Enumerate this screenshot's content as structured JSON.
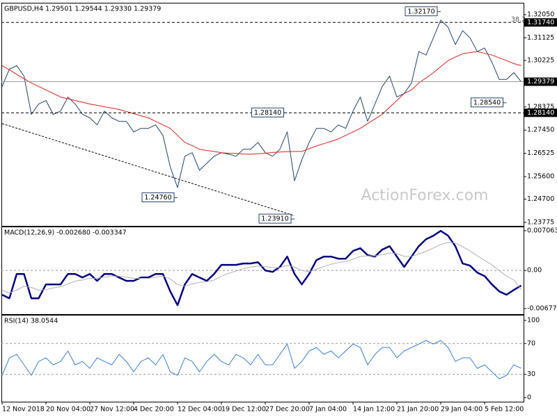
{
  "chart_data": [
    {
      "type": "price",
      "title": "GBPUSD,H4 1.29501 1.29544 1.29330 1.29379",
      "series": [
        {
          "color": "#24436b",
          "values": [
            1.2919,
            1.2988,
            1.3002,
            1.296,
            1.2808,
            1.2849,
            1.2863,
            1.2808,
            1.2821,
            1.2877,
            1.2849,
            1.2808,
            1.2794,
            1.2766,
            1.2821,
            1.2794,
            1.278,
            1.278,
            1.2738,
            1.2752,
            1.2752,
            1.2766,
            1.2724,
            1.2599,
            1.2516,
            1.2641,
            1.2655,
            1.2585,
            1.2613,
            1.2641,
            1.2655,
            1.2649,
            1.2641,
            1.2669,
            1.2669,
            1.2696,
            1.2655,
            1.2641,
            1.2669,
            1.2738,
            1.2543,
            1.2627,
            1.2696,
            1.2752,
            1.2752,
            1.2738,
            1.2766,
            1.2752,
            1.2821,
            1.2877,
            1.278,
            1.2849,
            1.2919,
            1.296,
            1.2877,
            1.2891,
            1.2933,
            1.3058,
            1.3044,
            1.3113,
            1.3183,
            1.3155,
            1.3086,
            1.3141,
            1.3113,
            1.3058,
            1.3072,
            1.3016,
            1.2947,
            1.2947,
            1.2974,
            1.29379
          ]
        },
        {
          "color": "#e0201b",
          "values": [
            1.3002,
            1.2985,
            1.2967,
            1.295,
            1.2933,
            1.2919,
            1.2905,
            1.2891,
            1.2877,
            1.287,
            1.2863,
            1.2856,
            1.2849,
            1.2844,
            1.2838,
            1.2833,
            1.2827,
            1.2819,
            1.2811,
            1.2802,
            1.2794,
            1.278,
            1.2766,
            1.2752,
            1.2724,
            1.2696,
            1.2683,
            1.2669,
            1.2664,
            1.266,
            1.2655,
            1.2653,
            1.2652,
            1.265,
            1.2649,
            1.2651,
            1.2653,
            1.2656,
            1.2658,
            1.2659,
            1.266,
            1.266,
            1.2671,
            1.2682,
            1.2691,
            1.27,
            1.271,
            1.2724,
            1.2738,
            1.2752,
            1.2771,
            1.2789,
            1.2808,
            1.2836,
            1.2863,
            1.2891,
            1.2905,
            1.2933,
            1.2953,
            1.2974,
            1.2998,
            1.3022,
            1.3036,
            1.3049,
            1.3054,
            1.3058,
            1.3051,
            1.3044,
            1.3033,
            1.3022,
            1.301,
            1.3002
          ]
        }
      ],
      "ylim": [
        1.23636,
        1.32523
      ],
      "yticks": [
        {
          "value": 1.3205,
          "label": "1.32050"
        },
        {
          "value": 1.31125,
          "label": "1.31125"
        },
        {
          "value": 1.30225,
          "label": "1.30225"
        },
        {
          "value": 1.28375,
          "label": "1.28375"
        },
        {
          "value": 1.2745,
          "label": "1.27450"
        },
        {
          "value": 1.26525,
          "label": "1.26525"
        },
        {
          "value": 1.256,
          "label": "1.25600"
        },
        {
          "value": 1.247,
          "label": "1.24700"
        },
        {
          "value": 1.23775,
          "label": "1.23775"
        }
      ],
      "levels": [
        {
          "value": 1.3174,
          "label": "1.31740",
          "note": "38.2",
          "dash": true
        },
        {
          "value": 1.2814,
          "label": "1.28140",
          "dash": true
        },
        {
          "value": 1.29379,
          "label": "1.29379",
          "dash": false
        }
      ],
      "annotations": [
        {
          "x": 60,
          "value": 1.3217,
          "label": "1.32170"
        },
        {
          "x": 69,
          "value": 1.2854,
          "label": "1.28540"
        },
        {
          "x": 39,
          "value": 1.2814,
          "label": "1.28140"
        },
        {
          "x": 24,
          "value": 1.2476,
          "label": "1.24760"
        },
        {
          "x": 40,
          "value": 1.2391,
          "label": "1.23910"
        }
      ],
      "trendline": {
        "x": [
          0,
          40
        ],
        "values": [
          1.2771,
          1.2404
        ]
      },
      "watermark": "ActionForex.com"
    },
    {
      "type": "macd",
      "title": "MACD(12,26,9) -0.002680 -0.003347",
      "series": [
        {
          "color": "#000080",
          "values": [
            -0.00432,
            -0.00494,
            -0.00062,
            -0.00062,
            -0.00494,
            -0.00494,
            -0.00247,
            -0.00247,
            -0.00247,
            -0.00062,
            -0.00062,
            -0.00124,
            -0.00062,
            -0.00185,
            -0.00062,
            -0.00062,
            -0.00124,
            -0.00185,
            -0.00185,
            -0.00124,
            -0.00124,
            -0.00062,
            -0.00062,
            -0.00371,
            -0.00618,
            -0.00247,
            -0.00062,
            -0.00124,
            -0.00185,
            -0.00062,
            0.00099,
            0.00099,
            0.00099,
            0.00124,
            0.00124,
            0.00148,
            0,
            -0.00025,
            0.00062,
            0.00247,
            -0.00062,
            -0.00247,
            -0.00062,
            0.00185,
            0.00247,
            0.00247,
            0.0021,
            0.0021,
            0.00346,
            0.00395,
            0.00272,
            0.00247,
            0.00371,
            0.00432,
            0.00247,
            0.00062,
            0.00247,
            0.00432,
            0.00556,
            0.00618,
            0.00704,
            0.00618,
            0.00432,
            0.00124,
            0.00086,
            -0.00037,
            -0.00099,
            -0.00247,
            -0.00371,
            -0.00432,
            -0.00346,
            -0.00268
          ]
        },
        {
          "color": "#b0b0b0",
          "values": [
            -0.0035,
            -0.004,
            -0.0035,
            -0.0028,
            -0.003,
            -0.0035,
            -0.0034,
            -0.0031,
            -0.0029,
            -0.0024,
            -0.0019,
            -0.0017,
            -0.0014,
            -0.0014,
            -0.0012,
            -0.001,
            -0.001,
            -0.0012,
            -0.0014,
            -0.0014,
            -0.0014,
            -0.0012,
            -0.001,
            -0.0015,
            -0.0025,
            -0.0028,
            -0.0024,
            -0.0021,
            -0.002,
            -0.0017,
            -0.001,
            -0.0005,
            -0.0001,
            0.0003,
            0.0006,
            0.0008,
            0.0007,
            0.0005,
            0.0005,
            0.0009,
            0.0006,
            0,
            -0.0002,
            0.0002,
            0.0007,
            0.0011,
            0.0014,
            0.0016,
            0.002,
            0.0025,
            0.0026,
            0.0026,
            0.0028,
            0.0031,
            0.003,
            0.0025,
            0.0025,
            0.0029,
            0.0034,
            0.004,
            0.0046,
            0.005,
            0.0049,
            0.0042,
            0.0035,
            0.0026,
            0.0018,
            0.001,
            0,
            -0.001,
            -0.0017,
            -0.003347
          ]
        }
      ],
      "ylim": [
        -0.00776,
        0.0078
      ],
      "yticks": [
        0.007063,
        {
          "value": 0,
          "label": "0.00"
        },
        -0.006774
      ],
      "levels": [
        0
      ]
    },
    {
      "type": "rsi",
      "title": "RSI(14) 38.0544",
      "series": [
        {
          "color": "#3a7fd5",
          "values": [
            28.8,
            51.4,
            55.9,
            42.3,
            28.8,
            46.8,
            51.4,
            42.3,
            46.8,
            60.4,
            42.3,
            46.8,
            37.8,
            51.4,
            46.8,
            42.3,
            55.9,
            46.8,
            33.3,
            46.8,
            51.4,
            42.3,
            55.9,
            33.3,
            28.8,
            51.4,
            46.8,
            33.3,
            46.8,
            55.9,
            46.8,
            42.3,
            55.9,
            51.4,
            42.3,
            55.9,
            42.3,
            42.3,
            55.9,
            69.4,
            37.8,
            46.8,
            60.4,
            64.9,
            55.9,
            60.4,
            51.4,
            60.4,
            69.4,
            64.9,
            42.3,
            55.9,
            64.9,
            64.9,
            51.4,
            60.4,
            64.9,
            69.4,
            73.9,
            69.4,
            73.9,
            64.9,
            46.8,
            51.4,
            51.4,
            37.8,
            42.3,
            33.3,
            24.3,
            28.8,
            42.3,
            38.0544
          ]
        }
      ],
      "ylim": [
        -5.4,
        107.2
      ],
      "yticks": [
        100,
        70,
        30,
        0
      ],
      "levels": [
        70,
        30
      ],
      "categories": [
        "12 Nov 2018",
        null,
        null,
        null,
        null,
        null,
        "20 Nov 04:00",
        null,
        null,
        null,
        null,
        null,
        "27 Nov 12:00",
        null,
        null,
        null,
        null,
        null,
        "4 Dec 20:00",
        null,
        null,
        null,
        null,
        null,
        "12 Dec 04:00",
        null,
        null,
        null,
        null,
        null,
        "19 Dec 12:00",
        null,
        null,
        null,
        null,
        null,
        "27 Dec 20:00",
        null,
        null,
        null,
        null,
        null,
        "7 Jan 04:00",
        null,
        null,
        null,
        null,
        null,
        "14 Jan 12:00",
        null,
        null,
        null,
        null,
        null,
        "21 Jan 20:00",
        null,
        null,
        null,
        null,
        null,
        "29 Jan 04:00",
        null,
        null,
        null,
        null,
        null,
        "5 Feb 12:00",
        null,
        null,
        null,
        null,
        null
      ]
    }
  ]
}
